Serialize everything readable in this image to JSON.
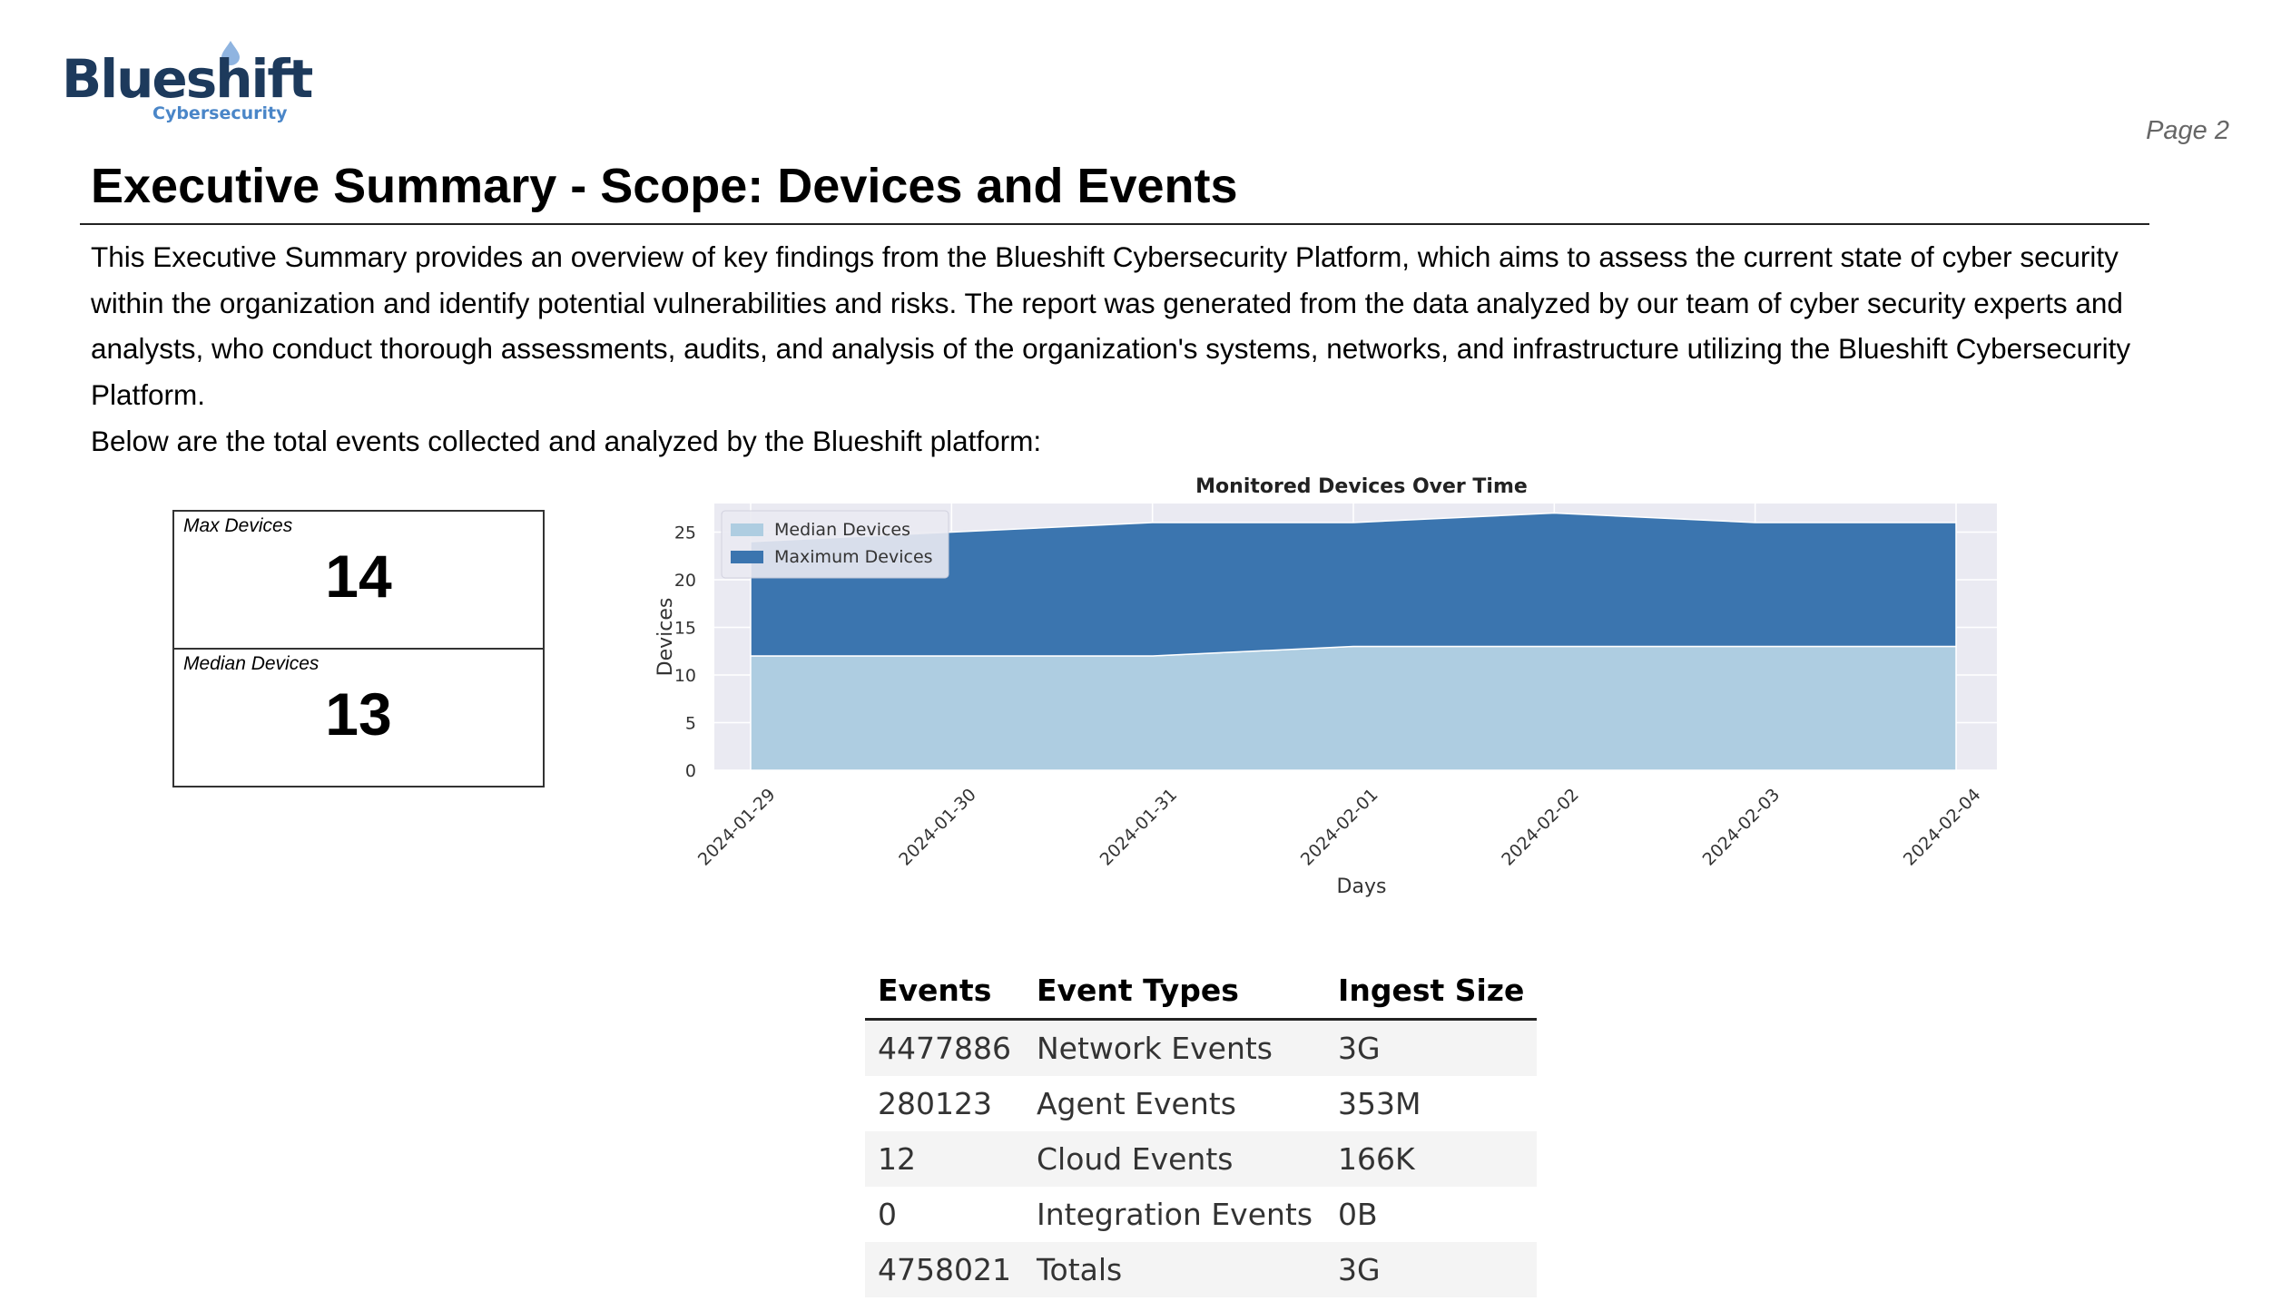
{
  "brand": {
    "name": "Blueshift",
    "tagline": "Cybersecurity",
    "primary_color": "#1d3a5c",
    "accent_color": "#4a86c8"
  },
  "page_label": "Page 2",
  "title": "Executive Summary - Scope: Devices and Events",
  "intro": "This Executive Summary provides an overview of key findings from the Blueshift Cybersecurity Platform, which aims to assess the current state of cyber security within the organization and identify potential vulnerabilities and risks. The report was generated from the data analyzed by our team of cyber security experts and analysts, who conduct thorough assessments, audits, and analysis of the organization's systems, networks, and infrastructure utilizing the Blueshift Cybersecurity Platform.",
  "lead": "Below are the total events collected and analyzed by the Blueshift platform:",
  "stats": {
    "max": {
      "label": "Max Devices",
      "value": "14"
    },
    "median": {
      "label": "Median Devices",
      "value": "13"
    }
  },
  "chart_data": {
    "type": "area",
    "stacked": true,
    "title": "Monitored Devices Over Time",
    "xlabel": "Days",
    "ylabel": "Devices",
    "categories": [
      "2024-01-29",
      "2024-01-30",
      "2024-01-31",
      "2024-02-01",
      "2024-02-02",
      "2024-02-03",
      "2024-02-04"
    ],
    "series": [
      {
        "name": "Median Devices",
        "color": "#aecde1",
        "values": [
          12,
          12,
          12,
          13,
          13,
          13,
          13
        ]
      },
      {
        "name": "Maximum Devices",
        "color": "#3b75af",
        "values": [
          12,
          13,
          14,
          13,
          14,
          13,
          13
        ]
      }
    ],
    "ylim": [
      0,
      28
    ],
    "yticks": [
      0,
      5,
      10,
      15,
      20,
      25
    ],
    "grid": true,
    "legend": "upper-left"
  },
  "events_table": {
    "headers": [
      "Events",
      "Event Types",
      "Ingest Size"
    ],
    "rows": [
      [
        "4477886",
        "Network Events",
        "3G"
      ],
      [
        "280123",
        "Agent Events",
        "353M"
      ],
      [
        "12",
        "Cloud Events",
        "166K"
      ],
      [
        "0",
        "Integration Events",
        "0B"
      ],
      [
        "4758021",
        "Totals",
        "3G"
      ]
    ]
  }
}
